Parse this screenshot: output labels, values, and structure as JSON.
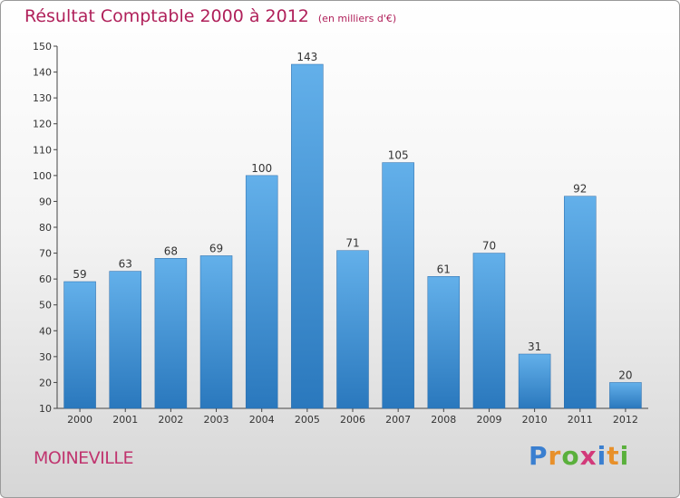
{
  "chart_data": {
    "type": "bar",
    "title": "Résultat Comptable 2000 à 2012",
    "subtitle": "(en milliers d'€)",
    "categories": [
      "2000",
      "2001",
      "2002",
      "2003",
      "2004",
      "2005",
      "2006",
      "2007",
      "2008",
      "2009",
      "2010",
      "2011",
      "2012"
    ],
    "values": [
      59,
      63,
      68,
      69,
      100,
      143,
      71,
      105,
      61,
      70,
      31,
      92,
      20
    ],
    "ylim": [
      10,
      150
    ],
    "yticks": [
      10,
      20,
      30,
      40,
      50,
      60,
      70,
      80,
      90,
      100,
      110,
      120,
      130,
      140,
      150
    ],
    "xlabel": "",
    "ylabel": "",
    "grid": false,
    "bar_color_top": "#63b0ea",
    "bar_color_bottom": "#2a78bd"
  },
  "footer": {
    "commune": "MOINEVILLE",
    "brand": "Proxiti"
  },
  "colors": {
    "title": "#b0205a",
    "commune": "#c0356f",
    "brand_letters": [
      "#3a7fd0",
      "#e8902a",
      "#5ab03c",
      "#d23a7a",
      "#3a7fd0",
      "#e8902a",
      "#5ab03c"
    ]
  }
}
